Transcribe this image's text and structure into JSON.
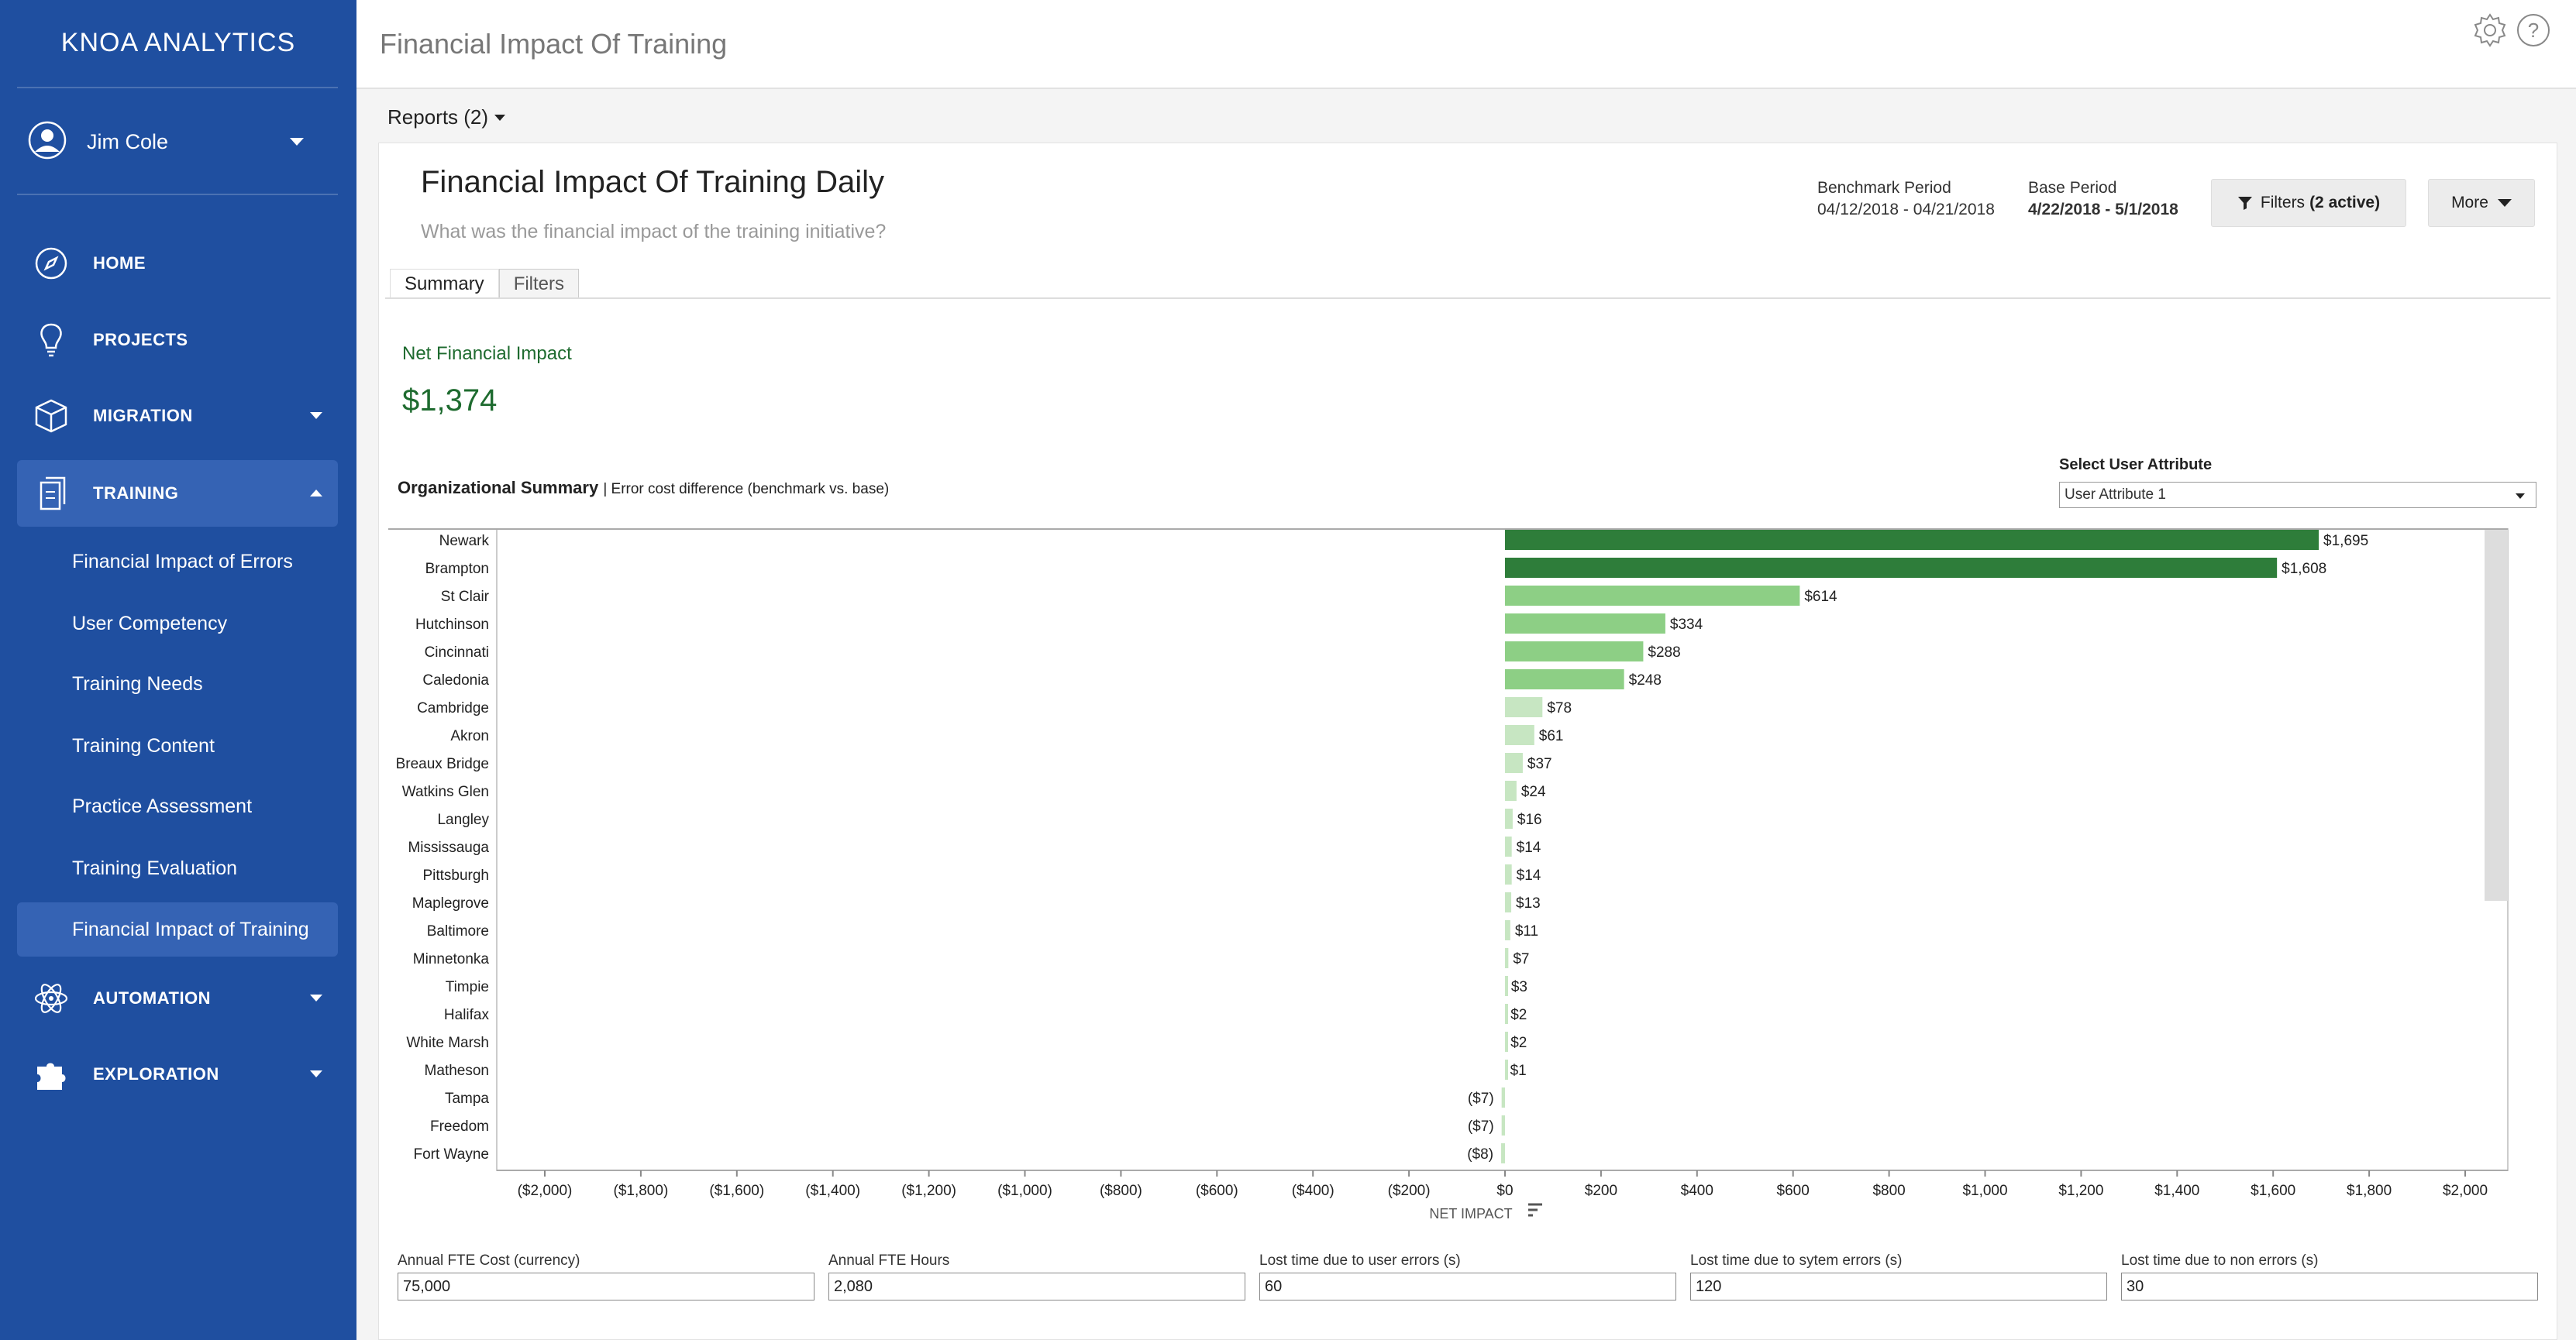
{
  "app": {
    "brand": "KNOA ANALYTICS",
    "user": "Jim Cole"
  },
  "nav": [
    {
      "label": "HOME",
      "icon": "compass-icon"
    },
    {
      "label": "PROJECTS",
      "icon": "lightbulb-icon"
    },
    {
      "label": "MIGRATION",
      "icon": "cube-icon"
    },
    {
      "label": "TRAINING",
      "icon": "document-icon"
    },
    {
      "label": "AUTOMATION",
      "icon": "atom-icon"
    },
    {
      "label": "EXPLORATION",
      "icon": "puzzle-icon"
    }
  ],
  "training_sub": [
    "Financial Impact of Errors",
    "User Competency",
    "Training Needs",
    "Training Content",
    "Practice Assessment",
    "Training Evaluation",
    "Financial Impact of Training"
  ],
  "header": {
    "title": "Financial Impact Of Training",
    "reports": "Reports (2)"
  },
  "report": {
    "title": "Financial Impact Of Training Daily",
    "subtitle": "What was the financial impact of the training initiative?",
    "benchmark_label": "Benchmark Period",
    "benchmark_value": "04/12/2018 - 04/21/2018",
    "base_label": "Base Period",
    "base_value": "4/22/2018 - 5/1/2018",
    "filters_btn": "Filters",
    "filters_active": "(2 active)",
    "more_btn": "More"
  },
  "tabs": [
    "Summary",
    "Filters"
  ],
  "summary": {
    "nfi_label": "Net Financial Impact",
    "nfi_value": "$1,374",
    "org_title": "Organizational Summary",
    "org_desc": "| Error cost difference (benchmark vs. base)",
    "select_label": "Select User Attribute",
    "select_value": "User Attribute 1"
  },
  "chart_data": {
    "type": "bar",
    "orientation": "horizontal",
    "xlabel": "NET IMPACT",
    "xlim": [
      -2000,
      2000
    ],
    "xticks": [
      "($2,000)",
      "($1,800)",
      "($1,600)",
      "($1,400)",
      "($1,200)",
      "($1,000)",
      "($800)",
      "($600)",
      "($400)",
      "($200)",
      "$0",
      "$200",
      "$400",
      "$600",
      "$800",
      "$1,000",
      "$1,200",
      "$1,400",
      "$1,600",
      "$1,800",
      "$2,000"
    ],
    "categories": [
      "Newark",
      "Brampton",
      "St Clair",
      "Hutchinson",
      "Cincinnati",
      "Caledonia",
      "Cambridge",
      "Akron",
      "Breaux Bridge",
      "Watkins Glen",
      "Langley",
      "Mississauga",
      "Pittsburgh",
      "Maplegrove",
      "Baltimore",
      "Minnetonka",
      "Timpie",
      "Halifax",
      "White Marsh",
      "Matheson",
      "Tampa",
      "Freedom",
      "Fort Wayne"
    ],
    "values": [
      1695,
      1608,
      614,
      334,
      288,
      248,
      78,
      61,
      37,
      24,
      16,
      14,
      14,
      13,
      11,
      7,
      3,
      2,
      2,
      1,
      -7,
      -7,
      -8
    ],
    "labels": [
      "$1,695",
      "$1,608",
      "$614",
      "$334",
      "$288",
      "$248",
      "$78",
      "$61",
      "$37",
      "$24",
      "$16",
      "$14",
      "$14",
      "$13",
      "$11",
      "$7",
      "$3",
      "$2",
      "$2",
      "$1",
      "($7)",
      "($7)",
      "($8)"
    ],
    "colors": {
      "high": "#2e7d3a",
      "mid": "#8dcf85",
      "low": "#c7e6c2"
    }
  },
  "fields": [
    {
      "label": "Annual FTE Cost (currency)",
      "value": "75,000"
    },
    {
      "label": "Annual FTE Hours",
      "value": "2,080"
    },
    {
      "label": "Lost time due to user errors (s)",
      "value": "60"
    },
    {
      "label": "Lost time due to sytem errors (s)",
      "value": "120"
    },
    {
      "label": "Lost time due to non errors (s)",
      "value": "30"
    }
  ]
}
